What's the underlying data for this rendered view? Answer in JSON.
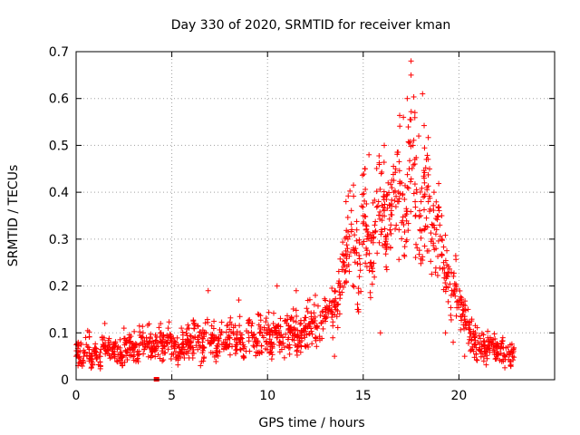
{
  "chart_data": {
    "type": "scatter",
    "title": "Day 330 of 2020, SRMTID for receiver kman",
    "xlabel": "GPS time / hours",
    "ylabel": "SRMTID / TECUs",
    "xlim": [
      0,
      25
    ],
    "ylim": [
      0,
      0.7
    ],
    "xticks": [
      "0",
      "5",
      "10",
      "15",
      "20"
    ],
    "yticks": [
      "0",
      "0.1",
      "0.2",
      "0.3",
      "0.4",
      "0.5",
      "0.6",
      "0.7"
    ],
    "grid": true,
    "marker": "+",
    "color": "#ff0000",
    "series": [
      {
        "name": "SRMTID",
        "x": [
          0.0,
          0.2,
          0.4,
          0.6,
          0.8,
          1.0,
          1.2,
          1.4,
          1.6,
          1.8,
          2.0,
          2.2,
          2.4,
          2.6,
          2.8,
          3.0,
          3.2,
          3.4,
          3.6,
          3.8,
          4.0,
          4.2,
          4.4,
          4.6,
          4.8,
          5.0,
          5.2,
          5.4,
          5.6,
          5.8,
          6.0,
          6.2,
          6.4,
          6.6,
          6.8,
          7.0,
          7.2,
          7.4,
          7.6,
          7.8,
          8.0,
          8.2,
          8.4,
          8.6,
          8.8,
          9.0,
          9.2,
          9.4,
          9.6,
          9.8,
          10.0,
          10.2,
          10.4,
          10.6,
          10.8,
          11.0,
          11.2,
          11.4,
          11.6,
          11.8,
          12.0,
          12.2,
          12.4,
          12.6,
          12.8,
          13.0,
          13.2,
          13.4,
          13.6,
          13.8,
          14.0,
          14.2,
          14.4,
          14.6,
          14.8,
          15.0,
          15.2,
          15.4,
          15.6,
          15.8,
          16.0,
          16.2,
          16.4,
          16.6,
          16.8,
          17.0,
          17.2,
          17.4,
          17.6,
          17.8,
          18.0,
          18.2,
          18.4,
          18.6,
          18.8,
          19.0,
          19.2,
          19.4,
          19.6,
          19.8,
          20.0,
          20.2,
          20.4,
          20.6,
          20.8,
          21.0,
          21.2,
          21.4,
          21.6,
          21.8,
          22.0,
          22.2,
          22.4,
          22.6,
          22.8,
          0.1,
          0.5,
          1.5,
          2.5,
          3.5,
          4.5,
          5.5,
          6.5,
          6.9,
          8.5,
          9.5,
          10.5,
          11.5,
          12.5,
          13.5,
          14.1,
          14.7,
          15.1,
          15.3,
          15.9,
          16.1,
          16.3,
          16.7,
          17.1,
          17.3,
          17.5,
          17.5,
          17.7,
          17.9,
          18.1,
          18.3,
          18.7,
          19.1,
          19.3,
          19.7,
          20.3,
          21.3,
          22.7
        ],
        "y": [
          0.05,
          0.06,
          0.05,
          0.07,
          0.04,
          0.06,
          0.05,
          0.07,
          0.06,
          0.08,
          0.06,
          0.07,
          0.05,
          0.06,
          0.08,
          0.07,
          0.06,
          0.09,
          0.07,
          0.08,
          0.06,
          0.07,
          0.08,
          0.07,
          0.09,
          0.07,
          0.08,
          0.06,
          0.07,
          0.08,
          0.07,
          0.09,
          0.08,
          0.07,
          0.1,
          0.08,
          0.09,
          0.07,
          0.1,
          0.08,
          0.09,
          0.1,
          0.08,
          0.09,
          0.07,
          0.1,
          0.09,
          0.08,
          0.1,
          0.09,
          0.1,
          0.08,
          0.11,
          0.1,
          0.09,
          0.12,
          0.1,
          0.11,
          0.09,
          0.1,
          0.11,
          0.12,
          0.13,
          0.11,
          0.12,
          0.13,
          0.15,
          0.14,
          0.16,
          0.2,
          0.25,
          0.3,
          0.32,
          0.28,
          0.22,
          0.35,
          0.3,
          0.25,
          0.33,
          0.38,
          0.35,
          0.3,
          0.32,
          0.4,
          0.38,
          0.42,
          0.35,
          0.45,
          0.5,
          0.4,
          0.35,
          0.42,
          0.38,
          0.3,
          0.28,
          0.33,
          0.25,
          0.22,
          0.18,
          0.2,
          0.16,
          0.14,
          0.12,
          0.1,
          0.09,
          0.08,
          0.07,
          0.06,
          0.08,
          0.07,
          0.06,
          0.07,
          0.05,
          0.06,
          0.05,
          0.03,
          0.09,
          0.12,
          0.11,
          0.1,
          0.04,
          0.11,
          0.03,
          0.19,
          0.17,
          0.14,
          0.2,
          0.19,
          0.18,
          0.05,
          0.38,
          0.15,
          0.45,
          0.48,
          0.1,
          0.5,
          0.42,
          0.45,
          0.56,
          0.6,
          0.65,
          0.68,
          0.57,
          0.52,
          0.61,
          0.47,
          0.4,
          0.35,
          0.1,
          0.08,
          0.05,
          0.04,
          0.03
        ],
        "jitter_note": "dense scatter; values above are representative samples"
      }
    ],
    "outliers": [
      {
        "x": 4.2,
        "y": 0.0
      }
    ]
  }
}
